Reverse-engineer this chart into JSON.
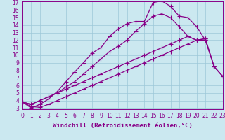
{
  "xlabel": "Windchill (Refroidissement éolien,°C)",
  "bg_color": "#cbe8f0",
  "line_color": "#880088",
  "xlim": [
    0,
    23
  ],
  "ylim": [
    3,
    17
  ],
  "xticks": [
    0,
    1,
    2,
    3,
    4,
    5,
    6,
    7,
    8,
    9,
    10,
    11,
    12,
    13,
    14,
    15,
    16,
    17,
    18,
    19,
    20,
    21,
    22,
    23
  ],
  "yticks": [
    3,
    4,
    5,
    6,
    7,
    8,
    9,
    10,
    11,
    12,
    13,
    14,
    15,
    16,
    17
  ],
  "series": [
    [
      3.8,
      3.2,
      3.1,
      3.5,
      4.0,
      4.5,
      5.0,
      5.5,
      6.0,
      6.5,
      7.0,
      7.5,
      8.0,
      8.5,
      9.0,
      9.5,
      10.0,
      10.5,
      11.0,
      11.5,
      12.0,
      12.0,
      8.5,
      7.2
    ],
    [
      3.8,
      3.5,
      4.0,
      4.5,
      5.0,
      5.5,
      6.0,
      6.5,
      7.0,
      7.5,
      8.0,
      8.5,
      9.0,
      9.5,
      10.0,
      10.5,
      11.0,
      11.5,
      12.0,
      12.5,
      12.0,
      12.2,
      8.5,
      7.2
    ],
    [
      3.8,
      3.5,
      4.0,
      4.5,
      5.0,
      5.8,
      6.5,
      7.5,
      8.5,
      9.5,
      10.5,
      11.2,
      12.0,
      13.2,
      14.2,
      15.2,
      15.5,
      15.0,
      13.8,
      12.5,
      12.0,
      12.2,
      8.5,
      7.2
    ],
    [
      3.8,
      3.0,
      3.5,
      4.2,
      5.2,
      6.5,
      7.8,
      9.0,
      10.3,
      11.0,
      12.5,
      13.5,
      14.2,
      14.5,
      14.5,
      17.0,
      17.2,
      16.5,
      15.2,
      15.0,
      13.8,
      12.0,
      null,
      null
    ]
  ],
  "marker": "+",
  "markersize": 4,
  "linewidth": 0.9,
  "grid_color": "#9cc8d8",
  "font_color": "#880088",
  "tick_font_size": 5.5,
  "xlabel_font_size": 6.5
}
